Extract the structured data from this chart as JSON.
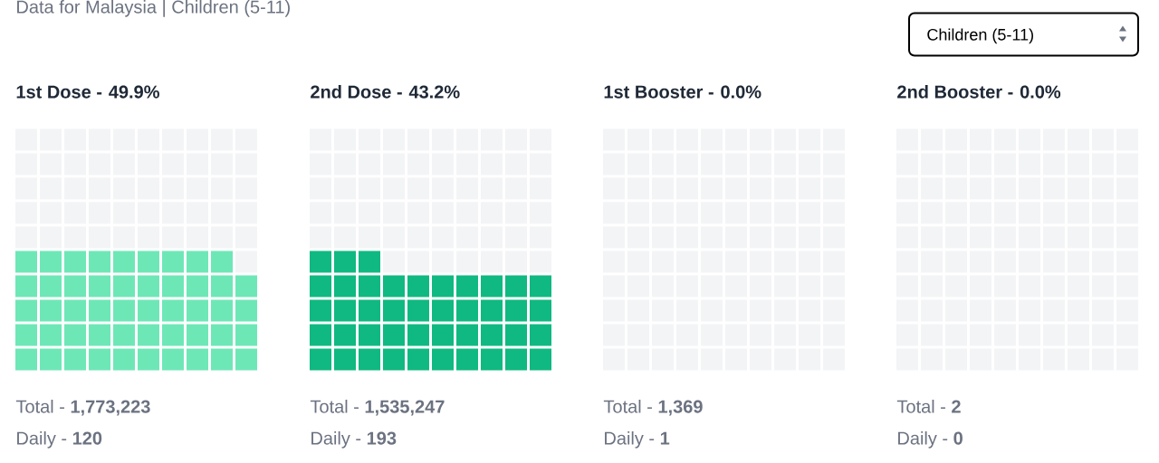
{
  "chart_data": [
    {
      "type": "other",
      "subtitle": "Data for Malaysia | Children (5-11)",
      "title": "1st Dose -",
      "values": [
        49.9
      ],
      "value_labels": [
        "49.9%"
      ],
      "color": "#6ee7b7",
      "annotations": [
        "Total - **1,773,223**",
        "Daily - **120**"
      ]
    },
    {
      "type": "other",
      "title": "2nd Dose -",
      "values": [
        43.2
      ],
      "value_labels": [
        "43.2%"
      ],
      "color": "#10b981",
      "annotations": [
        "Total - **1,535,247**",
        "Daily - **193**"
      ]
    },
    {
      "type": "other",
      "title": "1st Booster -",
      "values": [
        0.0
      ],
      "value_labels": [
        "0.0%"
      ],
      "annotations": [
        "Total - **1,369**",
        "Daily - **1**"
      ]
    },
    {
      "type": "other",
      "title": "2nd Booster -",
      "values": [
        0.0
      ],
      "value_labels": [
        "0.0%"
      ],
      "legend_title": "Children (5-11)",
      "annotations": [
        "Total - **2**",
        "Daily - **0**"
      ]
    }
  ]
}
